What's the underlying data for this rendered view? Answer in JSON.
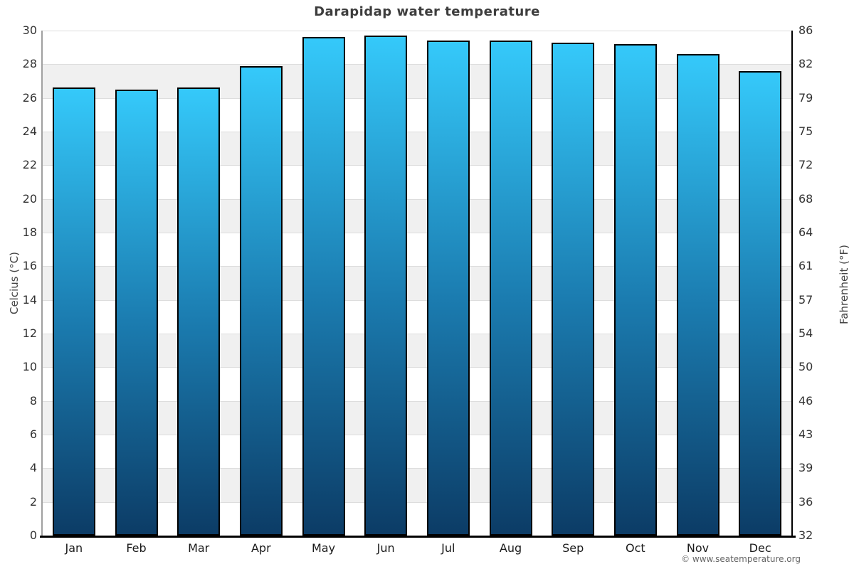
{
  "watermark": "© www.seatemperature.org",
  "colors": {
    "bar_top": "#35c9fa",
    "bar_mid": "#1b7cb0",
    "bar_bottom": "#0c3c66",
    "bar_border": "#000000",
    "band_gray": "#f0f0f0",
    "gridline": "#dddddd",
    "left_axis": "#a0a0a0",
    "right_axis": "#000000",
    "bottom_axis": "#000000",
    "title_color": "#3d3d3d",
    "tick_color": "#333333",
    "axis_label_color": "#444444",
    "watermark_color": "#666666"
  },
  "chart_data": {
    "type": "bar",
    "title": "Darapidap water temperature",
    "ylabel_left": "Celcius (°C)",
    "ylabel_right": "Fahrenheit (°F)",
    "categories": [
      "Jan",
      "Feb",
      "Mar",
      "Apr",
      "May",
      "Jun",
      "Jul",
      "Aug",
      "Sep",
      "Oct",
      "Nov",
      "Dec"
    ],
    "values_celsius": [
      26.6,
      26.5,
      26.6,
      27.9,
      29.6,
      29.7,
      29.4,
      29.4,
      29.3,
      29.2,
      28.6,
      27.6
    ],
    "ylim": [
      0,
      30
    ],
    "ytick_step": 2,
    "yticks_celsius": [
      "30",
      "28",
      "26",
      "24",
      "22",
      "20",
      "18",
      "16",
      "14",
      "12",
      "10",
      "8",
      "6",
      "4",
      "2",
      "0"
    ],
    "yticks_fahrenheit": [
      "86",
      "82",
      "79",
      "75",
      "72",
      "68",
      "64",
      "61",
      "57",
      "54",
      "50",
      "46",
      "43",
      "39",
      "36",
      "32"
    ],
    "grid": "horizontal-bands-alternating",
    "legend": "none"
  }
}
